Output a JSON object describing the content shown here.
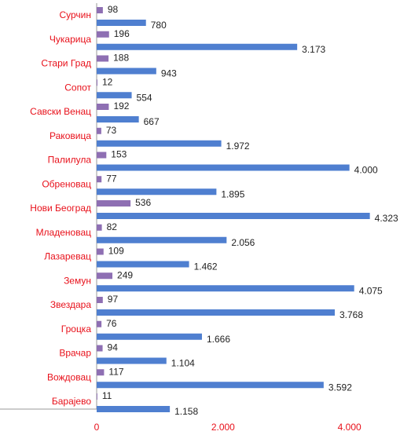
{
  "chart_data": {
    "type": "hbar",
    "categories": [
      "Сурчин",
      "Чукарица",
      "Стари Град",
      "Сопот",
      "Савски Венац",
      "Раковица",
      "Палилула",
      "Обреновац",
      "Нови Београд",
      "Младеновац",
      "Лазаревац",
      "Земун",
      "Звездара",
      "Гроцка",
      "Врачар",
      "Вождовац",
      "Барајево"
    ],
    "series": [
      {
        "color": "#8e6fb3",
        "values": [
          98,
          196,
          188,
          12,
          192,
          73,
          153,
          77,
          536,
          82,
          109,
          249,
          97,
          76,
          94,
          117,
          11
        ]
      },
      {
        "color": "#4f7fd0",
        "values": [
          780,
          3173,
          943,
          554,
          667,
          1972,
          4000,
          1895,
          4323,
          2056,
          1462,
          4075,
          3768,
          1666,
          1104,
          3592,
          1158
        ],
        "value_labels": [
          "780",
          "3.173",
          "943",
          "554",
          "667",
          "1.972",
          "4.000",
          "1.895",
          "4.323",
          "2.056",
          "1.462",
          "4.075",
          "3.768",
          "1.666",
          "1.104",
          "3.592",
          "1.158"
        ]
      }
    ],
    "xlim": [
      0,
      4800
    ],
    "xticks": [
      0,
      {
        "value": 2000,
        "label": "2.000"
      },
      {
        "value": 4000,
        "label": "4.000"
      }
    ]
  }
}
